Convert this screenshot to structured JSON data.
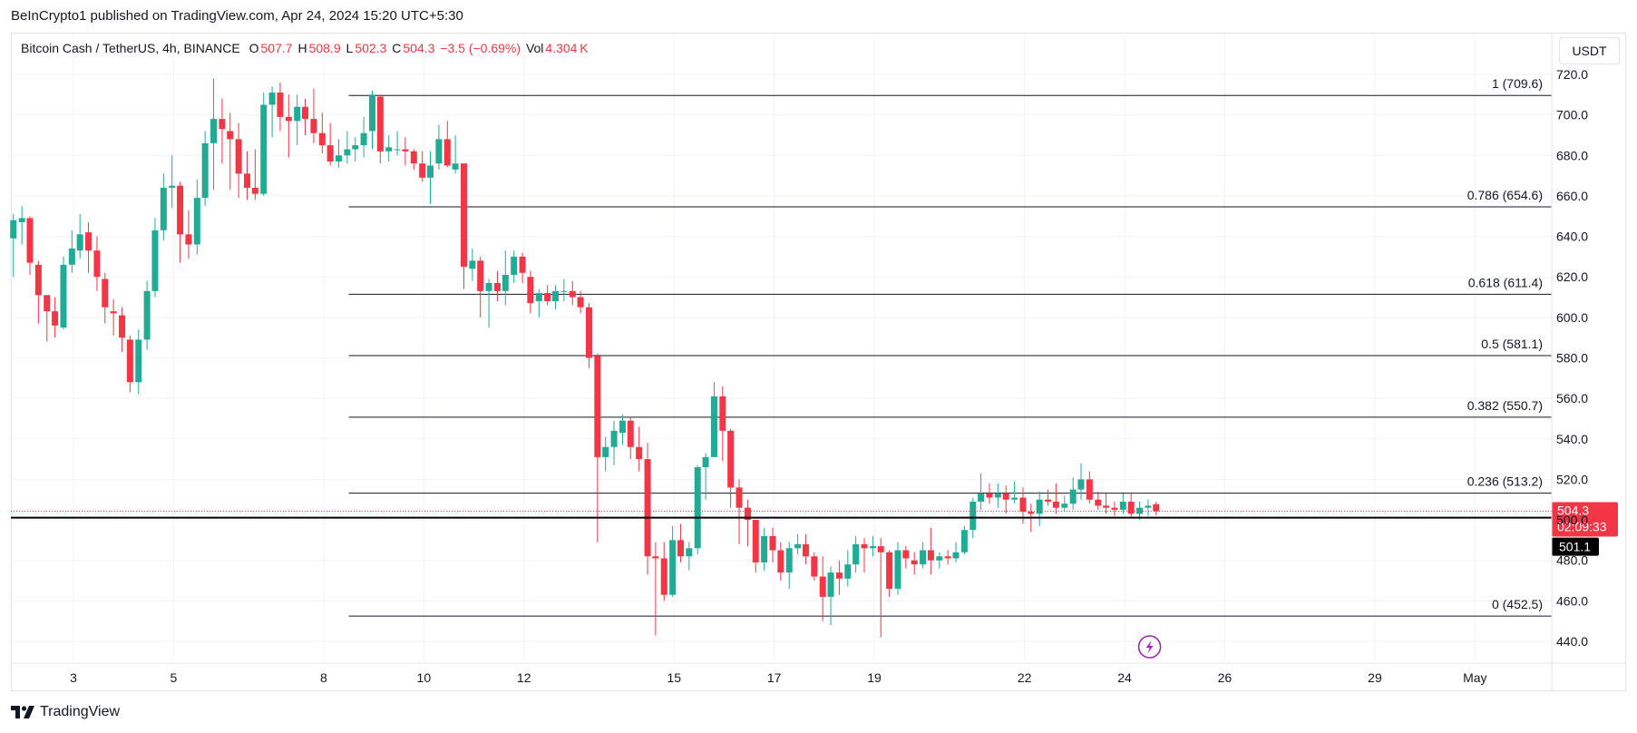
{
  "caption": "BeInCrypto1 published on TradingView.com, Apr 24, 2024 15:20 UTC+5:30",
  "legend": {
    "title": "Bitcoin Cash / TetherUS, 4h, BINANCE",
    "open_key": "O",
    "open": "507.7",
    "high_key": "H",
    "high": "508.9",
    "low_key": "L",
    "low": "502.3",
    "close_key": "C",
    "close": "504.3",
    "change": "−3.5 (−0.69%)",
    "vol_key": "Vol",
    "vol": "4.304 K"
  },
  "currency": "USDT",
  "footer": {
    "brand": "TradingView",
    "logo_icon": "tradingview-logo-icon"
  },
  "colors": {
    "up": "#22ab94",
    "down": "#f23645",
    "price_badge": "#f23645",
    "line_badge": "#000000",
    "lightning": "#9c27b0"
  },
  "chart_data": {
    "type": "candlestick",
    "symbol": "Bitcoin Cash / TetherUS",
    "timeframe": "4h",
    "exchange": "BINANCE",
    "ylim": [
      430,
      727
    ],
    "y_ticks": [
      "720.0",
      "700.0",
      "680.0",
      "660.0",
      "640.0",
      "620.0",
      "600.0",
      "580.0",
      "560.0",
      "540.0",
      "520.0",
      "500.0",
      "480.0",
      "460.0",
      "440.0"
    ],
    "y_tick_values": [
      720,
      700,
      680,
      660,
      640,
      620,
      600,
      580,
      560,
      540,
      520,
      500,
      480,
      460,
      440
    ],
    "x_ticks": [
      {
        "label": "3",
        "day": 3
      },
      {
        "label": "5",
        "day": 5
      },
      {
        "label": "8",
        "day": 8
      },
      {
        "label": "10",
        "day": 10
      },
      {
        "label": "12",
        "day": 12
      },
      {
        "label": "15",
        "day": 15
      },
      {
        "label": "17",
        "day": 17
      },
      {
        "label": "19",
        "day": 19
      },
      {
        "label": "22",
        "day": 22
      },
      {
        "label": "24",
        "day": 24
      },
      {
        "label": "26",
        "day": 26
      },
      {
        "label": "29",
        "day": 29
      },
      {
        "label": "May",
        "day": 31
      }
    ],
    "x_range_days": [
      1.8,
      32.4
    ],
    "fib_levels": [
      {
        "label": "1 (709.6)",
        "value": 709.6
      },
      {
        "label": "0.786 (654.6)",
        "value": 654.6
      },
      {
        "label": "0.618 (611.4)",
        "value": 611.4
      },
      {
        "label": "0.5 (581.1)",
        "value": 581.1
      },
      {
        "label": "0.382 (550.7)",
        "value": 550.7
      },
      {
        "label": "0.236 (513.2)",
        "value": 513.2
      },
      {
        "label": "0 (452.5)",
        "value": 452.5
      }
    ],
    "fib_start_day": 8.5,
    "horizontal_line": {
      "value": 501.1,
      "label": "501.1"
    },
    "current_price": {
      "value": 504.3,
      "label": "504.3",
      "countdown": "02:09:33"
    },
    "event_marker_day": 24.5,
    "candles": [
      [
        1.8,
        639.0,
        651.0,
        620.0,
        648.0
      ],
      [
        1.97,
        647.0,
        655.0,
        636.0,
        649.0
      ],
      [
        2.13,
        649.0,
        650.0,
        621.0,
        627.0
      ],
      [
        2.3,
        626.0,
        628.0,
        597.0,
        611.0
      ],
      [
        2.47,
        611.0,
        611.0,
        588.0,
        603.0
      ],
      [
        2.63,
        603.0,
        610.0,
        590.0,
        596.0
      ],
      [
        2.8,
        595.0,
        630.0,
        594.0,
        626.0
      ],
      [
        2.97,
        626.0,
        643.0,
        622.0,
        634.0
      ],
      [
        3.13,
        633.0,
        651.0,
        629.0,
        641.0
      ],
      [
        3.3,
        642.0,
        647.0,
        622.0,
        633.0
      ],
      [
        3.47,
        633.0,
        640.0,
        613.0,
        620.0
      ],
      [
        3.63,
        619.0,
        622.0,
        597.0,
        605.0
      ],
      [
        3.8,
        603.0,
        609.0,
        591.0,
        602.0
      ],
      [
        3.97,
        601.0,
        605.0,
        583.0,
        590.0
      ],
      [
        4.13,
        589.0,
        591.0,
        563.0,
        568.0
      ],
      [
        4.3,
        568.0,
        594.0,
        562.0,
        589.0
      ],
      [
        4.47,
        589.0,
        618.0,
        584.0,
        613.0
      ],
      [
        4.63,
        613.0,
        649.0,
        610.0,
        643.0
      ],
      [
        4.8,
        643.0,
        671.0,
        638.0,
        664.0
      ],
      [
        4.97,
        664.0,
        680.0,
        654.0,
        665.0
      ],
      [
        5.13,
        665.0,
        667.0,
        627.0,
        641.0
      ],
      [
        5.3,
        641.0,
        653.0,
        629.0,
        636.0
      ],
      [
        5.47,
        636.0,
        668.0,
        631.0,
        659.0
      ],
      [
        5.63,
        659.0,
        692.0,
        655.0,
        686.0
      ],
      [
        5.8,
        686.0,
        718.0,
        663.0,
        698.0
      ],
      [
        5.97,
        698.0,
        708.0,
        676.0,
        693.0
      ],
      [
        6.13,
        692.0,
        701.0,
        663.0,
        688.0
      ],
      [
        6.3,
        688.0,
        696.0,
        659.0,
        671.0
      ],
      [
        6.47,
        671.0,
        682.0,
        658.0,
        664.0
      ],
      [
        6.63,
        664.0,
        683.0,
        658.0,
        661.0
      ],
      [
        6.8,
        661.0,
        711.0,
        660.0,
        705.0
      ],
      [
        6.97,
        705.0,
        714.0,
        689.0,
        711.0
      ],
      [
        7.13,
        711.0,
        716.0,
        692.0,
        699.0
      ],
      [
        7.3,
        699.0,
        710.0,
        679.0,
        697.0
      ],
      [
        7.47,
        697.0,
        710.0,
        685.0,
        704.0
      ],
      [
        7.63,
        704.0,
        708.0,
        690.0,
        698.0
      ],
      [
        7.8,
        698.0,
        713.0,
        686.0,
        691.0
      ],
      [
        7.97,
        691.0,
        701.0,
        681.0,
        685.0
      ],
      [
        8.13,
        685.0,
        696.0,
        675.0,
        677.0
      ],
      [
        8.3,
        677.0,
        688.0,
        674.0,
        680.0
      ],
      [
        8.47,
        680.0,
        692.0,
        676.0,
        683.0
      ],
      [
        8.63,
        683.0,
        689.0,
        677.0,
        685.0
      ],
      [
        8.8,
        685.0,
        699.0,
        679.0,
        691.0
      ],
      [
        8.97,
        692.0,
        712.0,
        683.0,
        710.0
      ],
      [
        9.13,
        709.0,
        710.0,
        676.0,
        682.0
      ],
      [
        9.3,
        682.0,
        690.0,
        677.0,
        684.0
      ],
      [
        9.47,
        683.0,
        692.0,
        680.0,
        683.0
      ],
      [
        9.63,
        683.0,
        689.0,
        675.0,
        682.0
      ],
      [
        9.8,
        682.0,
        683.0,
        673.0,
        676.0
      ],
      [
        9.97,
        676.0,
        682.0,
        667.0,
        669.0
      ],
      [
        10.13,
        669.0,
        682.0,
        656.0,
        675.0
      ],
      [
        10.3,
        676.0,
        695.0,
        673.0,
        688.0
      ],
      [
        10.47,
        688.0,
        697.0,
        674.0,
        675.0
      ],
      [
        10.63,
        673.0,
        690.0,
        671.0,
        676.0
      ],
      [
        10.8,
        676.0,
        676.0,
        614.0,
        625.0
      ],
      [
        10.97,
        624.0,
        634.0,
        618.0,
        628.0
      ],
      [
        11.13,
        628.0,
        630.0,
        600.0,
        613.0
      ],
      [
        11.3,
        613.0,
        619.0,
        595.0,
        617.0
      ],
      [
        11.47,
        617.0,
        623.0,
        608.0,
        613.0
      ],
      [
        11.63,
        613.0,
        633.0,
        606.0,
        621.0
      ],
      [
        11.8,
        621.0,
        633.0,
        617.0,
        630.0
      ],
      [
        11.97,
        630.0,
        632.0,
        617.0,
        622.0
      ],
      [
        12.13,
        620.0,
        623.0,
        602.0,
        607.0
      ],
      [
        12.3,
        608.0,
        614.0,
        600.0,
        612.0
      ],
      [
        12.47,
        612.0,
        616.0,
        606.0,
        608.0
      ],
      [
        12.63,
        608.0,
        616.0,
        604.0,
        613.0
      ],
      [
        12.8,
        613.0,
        619.0,
        608.0,
        613.0
      ],
      [
        12.97,
        613.0,
        618.0,
        606.0,
        610.0
      ],
      [
        13.13,
        610.0,
        613.0,
        602.0,
        605.0
      ],
      [
        13.3,
        605.0,
        607.0,
        575.0,
        580.0
      ],
      [
        13.47,
        581.0,
        582.0,
        489.0,
        531.0
      ],
      [
        13.63,
        531.0,
        541.0,
        524.0,
        536.0
      ],
      [
        13.8,
        536.0,
        549.0,
        527.0,
        544.0
      ],
      [
        13.97,
        543.0,
        552.0,
        537.0,
        549.0
      ],
      [
        14.13,
        549.0,
        551.0,
        530.0,
        536.0
      ],
      [
        14.3,
        536.0,
        546.0,
        524.0,
        530.0
      ],
      [
        14.47,
        530.0,
        538.0,
        473.0,
        482.0
      ],
      [
        14.63,
        482.0,
        489.0,
        443.0,
        481.0
      ],
      [
        14.8,
        481.0,
        489.0,
        460.0,
        463.0
      ],
      [
        14.97,
        463.0,
        497.0,
        462.0,
        490.0
      ],
      [
        15.13,
        490.0,
        498.0,
        479.0,
        482.0
      ],
      [
        15.3,
        482.0,
        489.0,
        475.0,
        486.0
      ],
      [
        15.47,
        486.0,
        527.0,
        483.0,
        526.0
      ],
      [
        15.63,
        526.0,
        533.0,
        510.0,
        531.0
      ],
      [
        15.8,
        531.0,
        568.0,
        531.0,
        561.0
      ],
      [
        15.97,
        561.0,
        566.0,
        529.0,
        544.0
      ],
      [
        16.13,
        544.0,
        545.0,
        506.0,
        516.0
      ],
      [
        16.3,
        516.0,
        520.0,
        488.0,
        506.0
      ],
      [
        16.47,
        506.0,
        510.0,
        487.0,
        500.0
      ],
      [
        16.63,
        500.0,
        500.0,
        474.0,
        479.0
      ],
      [
        16.8,
        479.0,
        496.0,
        475.0,
        492.0
      ],
      [
        16.97,
        492.0,
        496.0,
        479.0,
        485.0
      ],
      [
        17.13,
        485.0,
        489.0,
        470.0,
        474.0
      ],
      [
        17.3,
        474.0,
        489.0,
        466.0,
        486.0
      ],
      [
        17.47,
        486.0,
        493.0,
        483.0,
        488.0
      ],
      [
        17.63,
        488.0,
        493.0,
        478.0,
        482.0
      ],
      [
        17.8,
        482.0,
        484.0,
        470.0,
        472.0
      ],
      [
        17.97,
        472.0,
        482.0,
        450.0,
        462.0
      ],
      [
        18.13,
        462.0,
        477.0,
        448.0,
        474.0
      ],
      [
        18.3,
        474.0,
        480.0,
        463.0,
        471.0
      ],
      [
        18.47,
        471.0,
        485.0,
        467.0,
        478.0
      ],
      [
        18.63,
        478.0,
        492.0,
        474.0,
        488.0
      ],
      [
        18.8,
        488.0,
        491.0,
        474.0,
        486.0
      ],
      [
        18.97,
        486.0,
        492.0,
        482.0,
        487.0
      ],
      [
        19.13,
        487.0,
        491.0,
        442.0,
        484.0
      ],
      [
        19.3,
        484.0,
        485.0,
        462.0,
        466.0
      ],
      [
        19.47,
        466.0,
        489.0,
        463.0,
        485.0
      ],
      [
        19.63,
        485.0,
        487.0,
        476.0,
        481.0
      ],
      [
        19.8,
        480.0,
        484.0,
        473.0,
        478.0
      ],
      [
        19.97,
        478.0,
        489.0,
        476.0,
        485.0
      ],
      [
        20.13,
        485.0,
        496.0,
        473.0,
        480.0
      ],
      [
        20.3,
        480.0,
        484.0,
        476.0,
        482.0
      ],
      [
        20.47,
        482.0,
        485.0,
        478.0,
        481.0
      ],
      [
        20.63,
        481.0,
        489.0,
        479.0,
        484.0
      ],
      [
        20.8,
        484.0,
        497.0,
        483.0,
        495.0
      ],
      [
        20.97,
        495.0,
        511.0,
        491.0,
        509.0
      ],
      [
        21.13,
        509.0,
        523.0,
        505.0,
        513.0
      ],
      [
        21.3,
        513.0,
        518.0,
        508.0,
        511.0
      ],
      [
        21.47,
        511.0,
        518.0,
        506.0,
        513.0
      ],
      [
        21.63,
        513.0,
        517.0,
        503.0,
        510.0
      ],
      [
        21.8,
        510.0,
        519.0,
        508.0,
        511.0
      ],
      [
        21.97,
        511.0,
        516.0,
        498.0,
        504.0
      ],
      [
        22.13,
        504.0,
        508.0,
        494.0,
        503.0
      ],
      [
        22.3,
        503.0,
        514.0,
        497.0,
        510.0
      ],
      [
        22.47,
        510.0,
        515.0,
        507.0,
        509.0
      ],
      [
        22.63,
        509.0,
        518.0,
        503.0,
        506.0
      ],
      [
        22.8,
        506.0,
        512.0,
        504.0,
        508.0
      ],
      [
        22.97,
        508.0,
        521.0,
        505.0,
        515.0
      ],
      [
        23.13,
        515.0,
        528.0,
        510.0,
        520.0
      ],
      [
        23.3,
        520.0,
        524.0,
        508.0,
        510.0
      ],
      [
        23.47,
        510.0,
        514.0,
        505.0,
        507.0
      ],
      [
        23.63,
        507.0,
        513.0,
        503.0,
        506.0
      ],
      [
        23.8,
        506.0,
        509.0,
        502.0,
        505.0
      ],
      [
        23.97,
        505.0,
        513.0,
        503.0,
        509.0
      ],
      [
        24.13,
        509.0,
        513.0,
        501.0,
        503.0
      ],
      [
        24.3,
        503.0,
        509.0,
        500.0,
        506.0
      ],
      [
        24.47,
        506.0,
        510.0,
        502.0,
        507.0
      ],
      [
        24.63,
        507.7,
        508.9,
        502.3,
        504.3
      ]
    ]
  }
}
